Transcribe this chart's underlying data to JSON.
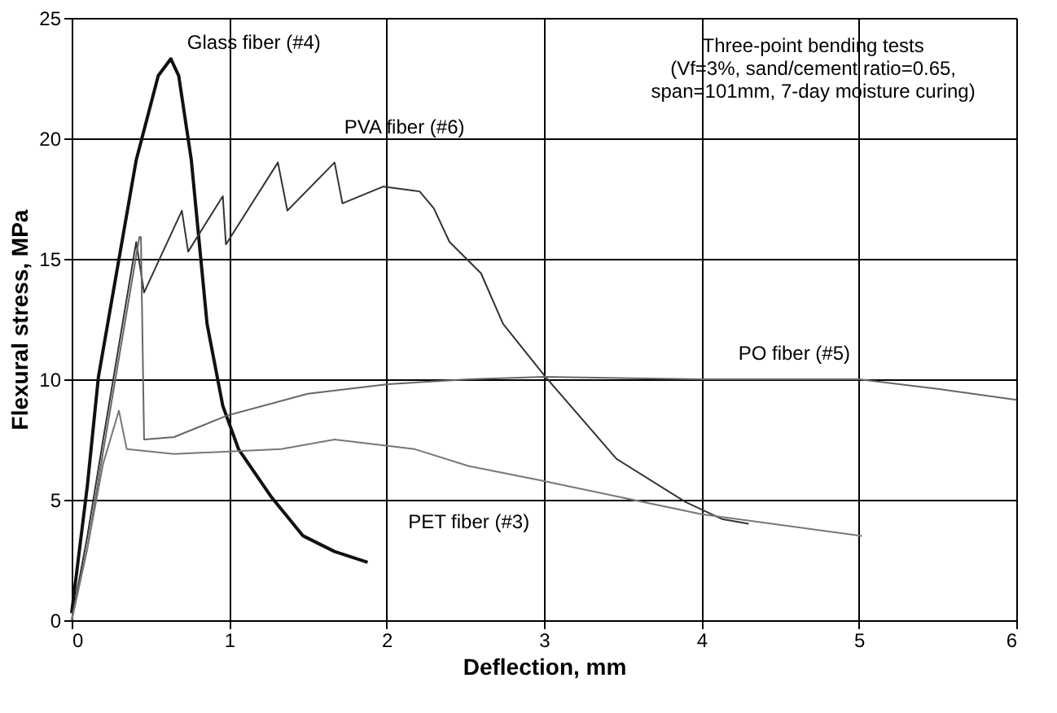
{
  "chart_data": {
    "type": "line",
    "xlabel": "Deflection, mm",
    "ylabel": "Flexural stress, MPa",
    "xlim": [
      0,
      6
    ],
    "xticks": [
      {
        "value": 0,
        "label": "0"
      },
      {
        "value": 1,
        "label": "1"
      },
      {
        "value": 2,
        "label": "2"
      },
      {
        "value": 3,
        "label": "3"
      },
      {
        "value": 4,
        "label": "4"
      },
      {
        "value": 5,
        "label": "5"
      },
      {
        "value": 6,
        "label": "6"
      }
    ],
    "ylim": [
      0,
      25
    ],
    "yticks": [
      0,
      5,
      10,
      15,
      20,
      25
    ],
    "grid": true,
    "legend": false,
    "marker": "none",
    "line_style": "solid",
    "series": [
      {
        "name": "Glass fiber (#4)",
        "color": "#111111",
        "x": [
          0,
          0.1,
          0.17,
          0.41,
          0.55,
          0.63,
          0.68,
          0.76,
          0.86,
          0.96,
          1.06,
          1.27,
          1.47,
          1.67,
          1.88
        ],
        "values": [
          0.3,
          5.6,
          10.1,
          19.1,
          22.6,
          23.3,
          22.6,
          19.1,
          12.3,
          8.9,
          7.1,
          5.1,
          3.5,
          2.85,
          2.4
        ]
      },
      {
        "name": "PVA fiber (#6)",
        "color": "#333333",
        "x": [
          0,
          0.1,
          0.2,
          0.41,
          0.46,
          0.7,
          0.74,
          0.96,
          0.98,
          1.31,
          1.37,
          1.67,
          1.72,
          1.98,
          2.21,
          2.3,
          2.4,
          2.6,
          2.74,
          3.01,
          3.46,
          3.9,
          4.13,
          4.3
        ],
        "values": [
          0,
          3.5,
          7.5,
          15.7,
          13.6,
          17,
          15.3,
          17.6,
          15.6,
          19,
          17,
          19,
          17.3,
          18,
          17.8,
          17.1,
          15.7,
          14.4,
          12.3,
          10.1,
          6.7,
          4.9,
          4.2,
          4.0
        ]
      },
      {
        "name": "PO fiber (#5)",
        "color": "#666666",
        "x": [
          0,
          0.1,
          0.2,
          0.43,
          0.44,
          0.46,
          0.65,
          0.99,
          1.5,
          2.01,
          2.52,
          3.0,
          4.0,
          5.0,
          5.5,
          6.0
        ],
        "values": [
          0,
          3,
          7,
          15.9,
          15.9,
          7.5,
          7.6,
          8.5,
          9.4,
          9.8,
          10.0,
          10.1,
          10.0,
          10.0,
          9.6,
          9.15
        ]
      },
      {
        "name": "PET fiber (#3)",
        "color": "#777777",
        "x": [
          0,
          0.1,
          0.2,
          0.3,
          0.35,
          0.65,
          1.33,
          1.67,
          2.18,
          2.52,
          2.98,
          4.0,
          5.02
        ],
        "values": [
          0,
          3,
          6.5,
          8.7,
          7.1,
          6.9,
          7.1,
          7.5,
          7.1,
          6.4,
          5.8,
          4.4,
          3.5
        ]
      }
    ],
    "annotations": [
      "Three-point bending tests\n(Vf=3%, sand/cement ratio=0.65,\nspan=101mm, 7-day moisture curing)"
    ]
  }
}
